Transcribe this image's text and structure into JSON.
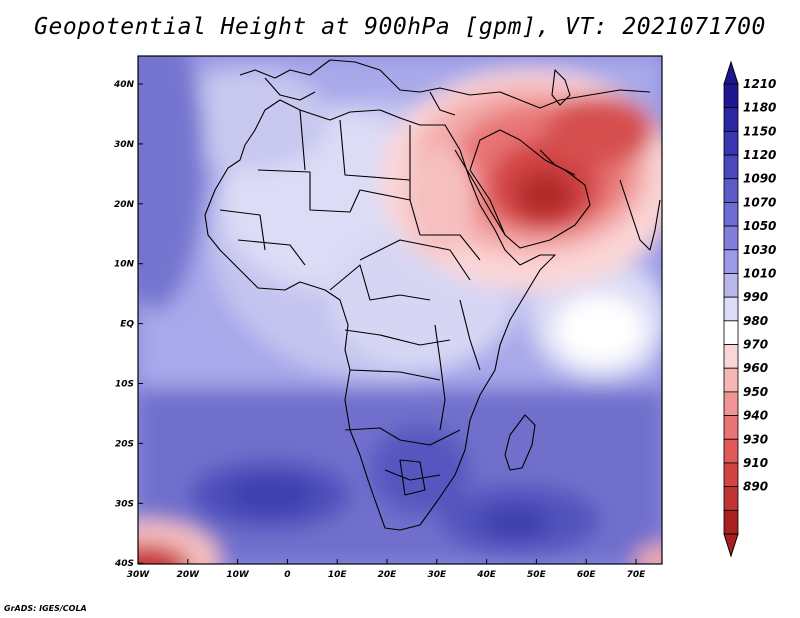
{
  "title": "Geopotential Height at 900hPa [gpm], VT: 2021071700",
  "footer": "GrADS: IGES/COLA",
  "x_ticks": [
    "30W",
    "20W",
    "10W",
    "0",
    "10E",
    "20E",
    "30E",
    "40E",
    "50E",
    "60E",
    "70E"
  ],
  "y_ticks": [
    "40N",
    "30N",
    "20N",
    "10N",
    "EQ",
    "10S",
    "20S",
    "30S",
    "40S"
  ],
  "colorbar": {
    "labels": [
      "1210",
      "1180",
      "1150",
      "1120",
      "1090",
      "1070",
      "1050",
      "1030",
      "1010",
      "990",
      "980",
      "970",
      "960",
      "950",
      "940",
      "930",
      "910",
      "890"
    ],
    "colors": [
      "#1e1690",
      "#2c26a0",
      "#3a35b0",
      "#4a48bc",
      "#5a5ac8",
      "#6c6cd2",
      "#8080dc",
      "#9a9ae6",
      "#b8b8ee",
      "#dcdcf6",
      "#ffffff",
      "#fbd6d6",
      "#f6b6b6",
      "#f09494",
      "#ea7474",
      "#e05a5a",
      "#d24444",
      "#c23434",
      "#a82020"
    ]
  },
  "colors": {
    "ocean_base": "#8e8ee0",
    "land_outline": "#000000",
    "high_core": "#2e2ea8",
    "low_core": "#a82020"
  }
}
